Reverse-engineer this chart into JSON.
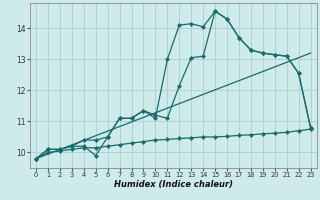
{
  "title": "",
  "xlabel": "Humidex (Indice chaleur)",
  "bg_color": "#ceeaea",
  "grid_color": "#aacfcf",
  "line_color": "#1a6b6b",
  "xlim": [
    -0.5,
    23.5
  ],
  "ylim": [
    9.5,
    14.8
  ],
  "xticks": [
    0,
    1,
    2,
    3,
    4,
    5,
    6,
    7,
    8,
    9,
    10,
    11,
    12,
    13,
    14,
    15,
    16,
    17,
    18,
    19,
    20,
    21,
    22,
    23
  ],
  "yticks": [
    10,
    11,
    12,
    13,
    14
  ],
  "curve1_x": [
    0,
    1,
    2,
    3,
    4,
    5,
    6,
    7,
    8,
    9,
    10,
    11,
    12,
    13,
    14,
    15,
    16,
    17,
    18,
    19,
    20,
    21,
    22,
    23
  ],
  "curve1_y": [
    9.8,
    10.1,
    10.1,
    10.2,
    10.2,
    9.9,
    10.5,
    11.1,
    11.1,
    11.35,
    11.1,
    13.0,
    14.1,
    14.15,
    14.05,
    14.55,
    14.3,
    13.7,
    13.3,
    13.2,
    13.15,
    13.1,
    12.55,
    10.8
  ],
  "curve2_x": [
    0,
    1,
    2,
    3,
    4,
    5,
    6,
    7,
    8,
    9,
    10,
    11,
    12,
    13,
    14,
    15,
    16,
    17,
    18,
    19,
    20,
    21,
    22,
    23
  ],
  "curve2_y": [
    9.8,
    10.1,
    10.1,
    10.2,
    10.4,
    10.4,
    10.5,
    11.1,
    11.1,
    11.35,
    11.2,
    11.1,
    12.15,
    13.05,
    13.1,
    14.55,
    14.3,
    13.7,
    13.3,
    13.2,
    13.15,
    13.1,
    12.55,
    10.8
  ],
  "line_x": [
    0,
    23
  ],
  "line_y": [
    9.8,
    13.2
  ],
  "flat_x": [
    0,
    1,
    2,
    3,
    4,
    5,
    6,
    7,
    8,
    9,
    10,
    11,
    12,
    13,
    14,
    15,
    16,
    17,
    18,
    19,
    20,
    21,
    22,
    23
  ],
  "flat_y": [
    9.8,
    10.0,
    10.05,
    10.1,
    10.15,
    10.15,
    10.2,
    10.25,
    10.3,
    10.35,
    10.4,
    10.42,
    10.45,
    10.47,
    10.5,
    10.5,
    10.52,
    10.55,
    10.57,
    10.6,
    10.62,
    10.65,
    10.7,
    10.75
  ]
}
